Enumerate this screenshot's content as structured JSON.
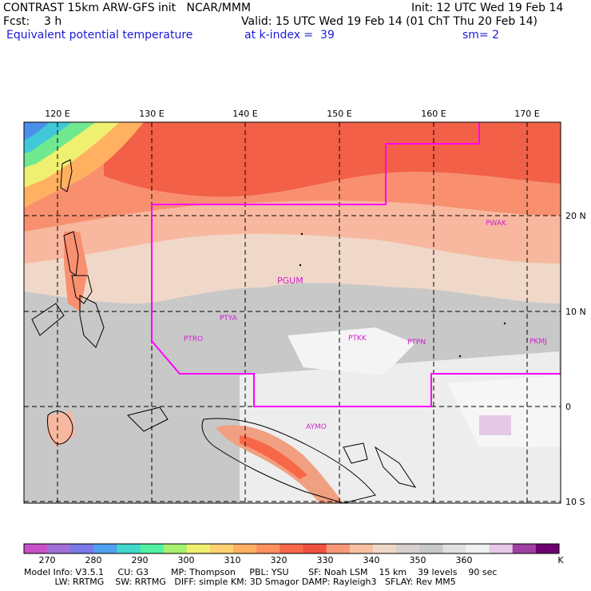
{
  "header": {
    "line1_left": "CONTRAST 15km ARW-GFS init   NCAR/MMM",
    "line1_right": "Init: 12 UTC Wed 19 Feb 14",
    "line2_left": "Fcst:    3 h",
    "line2_right": "Valid: 15 UTC Wed 19 Feb 14 (01 ChT Thu 20 Feb 14)",
    "line3_left": "Equivalent potential temperature",
    "line3_mid": "at k-index =  39",
    "line3_right": "sm= 2"
  },
  "map": {
    "lon_labels": [
      "120 E",
      "130 E",
      "140 E",
      "150 E",
      "160 E",
      "170 E"
    ],
    "lat_labels": [
      "20 N",
      "10 N",
      "0",
      "10 S"
    ],
    "stations": [
      "PWAK",
      "PGUM",
      "PTYA",
      "PTRO",
      "PTKK",
      "PTPN",
      "PKMJ",
      "AYMO"
    ]
  },
  "colorbar": {
    "ticks": [
      "270",
      "280",
      "290",
      "300",
      "310",
      "320",
      "330",
      "340",
      "350",
      "360"
    ],
    "unit": "K",
    "colors": [
      "#c850c8",
      "#a070d8",
      "#7878e8",
      "#50a0f0",
      "#40d8c8",
      "#50f0a0",
      "#a8f070",
      "#f0f070",
      "#ffd070",
      "#ffb060",
      "#ff9060",
      "#f86848",
      "#f05040",
      "#f89878",
      "#f8c0a0",
      "#f0d8c8",
      "#d8d0d0",
      "#c8c8c8",
      "#e0e0e0",
      "#f0f0f0",
      "#e8c8e8",
      "#a040a0",
      "#700070"
    ]
  },
  "footer": {
    "line1": "Model Info: V3.5.1     CU: G3        MP: Thompson     PBL: YSU       SF: Noah LSM    15 km    39 levels    90 sec",
    "line2": "           LW: RRTMG    SW: RRTMG   DIFF: simple KM: 3D Smagor DAMP: Rayleigh3   SFLAY: Rev MM5"
  }
}
